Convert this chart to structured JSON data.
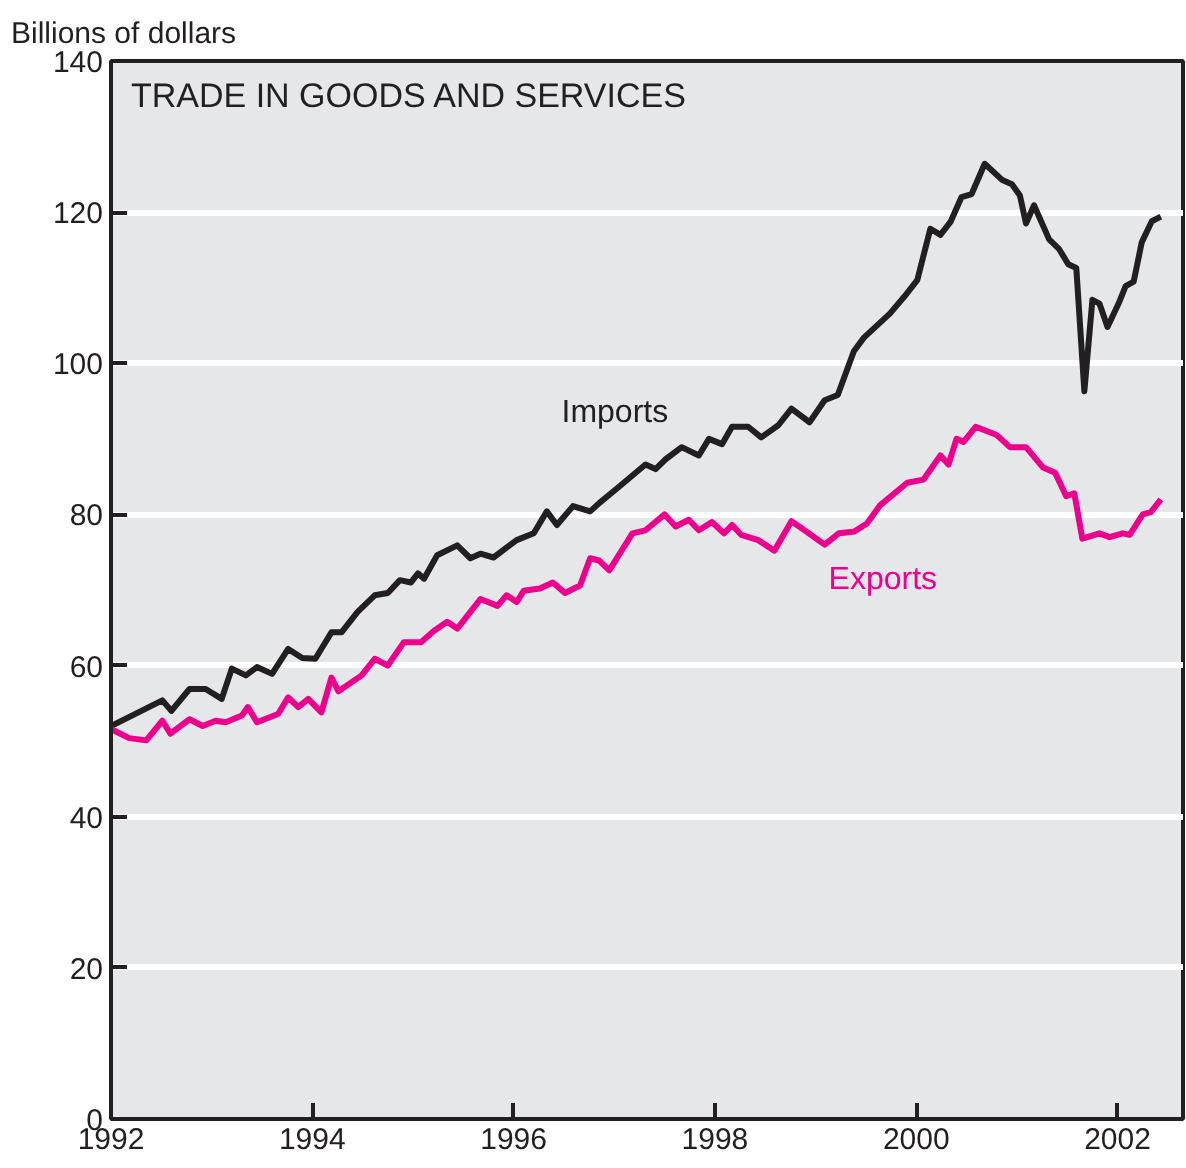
{
  "chart_data": {
    "type": "line",
    "title": "TRADE IN GOODS AND SERVICES",
    "ylabel": "Billions of dollars",
    "xlim": [
      1992,
      2002.65
    ],
    "ylim": [
      0,
      140
    ],
    "xticks": [
      1992,
      1994,
      1996,
      1998,
      2000,
      2002
    ],
    "yticks": [
      0,
      20,
      40,
      60,
      80,
      100,
      120,
      140
    ],
    "grid": "y",
    "legend": false,
    "line_style": "solid",
    "series": [
      {
        "name": "Imports",
        "color": "#231f20",
        "x": [
          1992.0,
          1992.51,
          1992.6,
          1992.78,
          1992.94,
          1993.1,
          1993.2,
          1993.34,
          1993.45,
          1993.6,
          1993.76,
          1993.9,
          1994.03,
          1994.19,
          1994.29,
          1994.45,
          1994.62,
          1994.75,
          1994.87,
          1994.98,
          1995.05,
          1995.11,
          1995.24,
          1995.44,
          1995.57,
          1995.67,
          1995.8,
          1996.03,
          1996.2,
          1996.33,
          1996.43,
          1996.59,
          1996.76,
          1996.85,
          1997.05,
          1997.31,
          1997.41,
          1997.51,
          1997.67,
          1997.84,
          1997.94,
          1998.07,
          1998.17,
          1998.33,
          1998.46,
          1998.63,
          1998.76,
          1998.94,
          1999.09,
          1999.22,
          1999.38,
          1999.48,
          1999.74,
          1999.88,
          2000.01,
          2000.14,
          2000.24,
          2000.34,
          2000.45,
          2000.55,
          2000.68,
          2000.85,
          2000.95,
          2001.03,
          2001.09,
          2001.17,
          2001.32,
          2001.42,
          2001.51,
          2001.59,
          2001.67,
          2001.75,
          2001.82,
          2001.9,
          2002.01,
          2002.08,
          2002.16,
          2002.24,
          2002.34,
          2002.43
        ],
        "values": [
          52.0,
          55.4,
          54,
          56.9,
          56.9,
          55.6,
          59.6,
          58.7,
          59.8,
          58.9,
          62.2,
          61,
          60.9,
          64.4,
          64.4,
          67.1,
          69.3,
          69.6,
          71.3,
          71.0,
          72.2,
          71.5,
          74.6,
          75.9,
          74.2,
          74.8,
          74.3,
          76.6,
          77.5,
          80.4,
          78.6,
          81.1,
          80.4,
          81.5,
          83.7,
          86.6,
          86,
          87.3,
          88.9,
          87.8,
          90,
          89.3,
          91.6,
          91.6,
          90.2,
          91.8,
          94,
          92.2,
          95.1,
          95.8,
          101.6,
          103.4,
          106.6,
          108.8,
          111,
          117.8,
          117,
          118.7,
          122,
          122.4,
          126.4,
          124.3,
          123.7,
          122.2,
          118.5,
          120.9,
          116.4,
          115.1,
          113.1,
          112.6,
          96.3,
          108.4,
          107.9,
          104.8,
          107.9,
          110.2,
          110.8,
          116,
          118.8,
          119.4
        ]
      },
      {
        "name": "Exports",
        "color": "#ec008c",
        "x": [
          1992.0,
          1992.18,
          1992.35,
          1992.51,
          1992.59,
          1992.78,
          1992.91,
          1993.04,
          1993.14,
          1993.3,
          1993.36,
          1993.45,
          1993.66,
          1993.76,
          1993.86,
          1993.96,
          1994.09,
          1994.19,
          1994.26,
          1994.49,
          1994.62,
          1994.75,
          1994.91,
          1995.08,
          1995.21,
          1995.34,
          1995.44,
          1995.67,
          1995.84,
          1995.93,
          1996.03,
          1996.1,
          1996.26,
          1996.39,
          1996.51,
          1996.66,
          1996.76,
          1996.85,
          1996.95,
          1997.18,
          1997.31,
          1997.5,
          1997.61,
          1997.74,
          1997.84,
          1997.97,
          1998.09,
          1998.17,
          1998.26,
          1998.43,
          1998.59,
          1998.76,
          1998.89,
          1999.09,
          1999.23,
          1999.38,
          1999.51,
          1999.64,
          1999.91,
          2000.07,
          2000.24,
          2000.32,
          2000.4,
          2000.47,
          2000.59,
          2000.8,
          2000.93,
          2001.09,
          2001.26,
          2001.38,
          2001.49,
          2001.57,
          2001.65,
          2001.82,
          2001.92,
          2002.05,
          2002.12,
          2002.25,
          2002.33,
          2002.43
        ],
        "values": [
          51.6,
          50.4,
          50.1,
          52.7,
          51,
          52.9,
          52,
          52.7,
          52.5,
          53.4,
          54.5,
          52.5,
          53.6,
          55.8,
          54.5,
          55.6,
          53.8,
          58.4,
          56.6,
          58.7,
          60.9,
          60,
          63.1,
          63.1,
          64.6,
          65.8,
          64.9,
          68.8,
          67.9,
          69.3,
          68.4,
          69.9,
          70.2,
          71,
          69.6,
          70.6,
          74.2,
          73.9,
          72.6,
          77.5,
          77.9,
          80,
          78.4,
          79.3,
          77.9,
          79,
          77.5,
          78.6,
          77.3,
          76.6,
          75.2,
          79.1,
          77.9,
          76,
          77.5,
          77.7,
          78.8,
          81.2,
          84.2,
          84.6,
          87.8,
          86.6,
          90,
          89.6,
          91.6,
          90.5,
          88.9,
          88.9,
          86.2,
          85.5,
          82.4,
          82.8,
          76.8,
          77.5,
          77,
          77.5,
          77.3,
          80,
          80.3,
          82
        ]
      }
    ]
  }
}
